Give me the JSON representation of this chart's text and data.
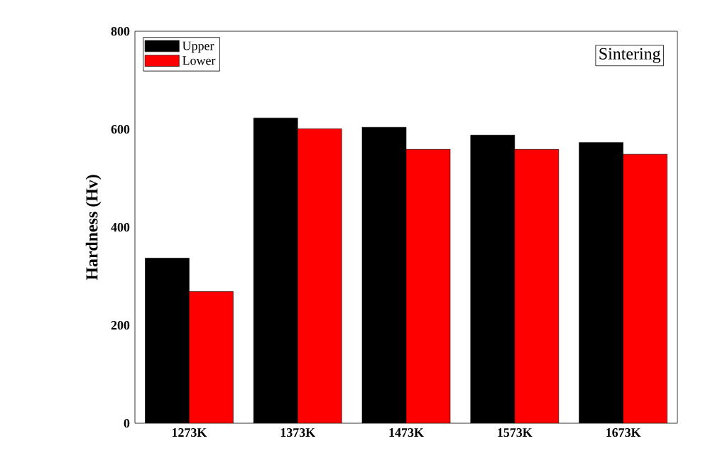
{
  "chart_data": {
    "type": "bar",
    "ylabel": "Hardness (Hv)",
    "categories": [
      "1273K",
      "1373K",
      "1473K",
      "1573K",
      "1673K"
    ],
    "series": [
      {
        "name": "Upper",
        "color": "#000000",
        "values": [
          337,
          623,
          604,
          588,
          573
        ]
      },
      {
        "name": "Lower",
        "color": "#ff0000",
        "values": [
          269,
          601,
          559,
          559,
          549
        ]
      }
    ],
    "ylim": [
      0,
      800
    ],
    "yticks": [
      0,
      200,
      400,
      600,
      800
    ],
    "grid": false,
    "legend": "top left",
    "annotations": [
      "Sintering"
    ]
  }
}
